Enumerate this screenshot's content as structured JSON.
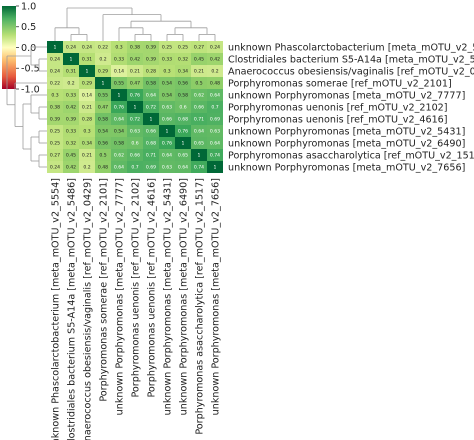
{
  "chart_data": {
    "type": "heatmap",
    "title": "",
    "labels": [
      "unknown Phascolarctobacterium [meta_mOTU_v2_5554]",
      "Clostridiales bacterium S5-A14a [meta_mOTU_v2_5486]",
      "Anaerococcus obesiensis/vaginalis [ref_mOTU_v2_0429]",
      "Porphyromonas somerae [ref_mOTU_v2_2101]",
      "unknown Porphyromonas [meta_mOTU_v2_7777]",
      "Porphyromonas uenonis [ref_mOTU_v2_2102]",
      "Porphyromonas uenonis [ref_mOTU_v2_4616]",
      "unknown Porphyromonas [meta_mOTU_v2_5431]",
      "unknown Porphyromonas [meta_mOTU_v2_6490]",
      "Porphyromonas asaccharolytica [ref_mOTU_v2_1517]",
      "unknown Porphyromonas [meta_mOTU_v2_7656]"
    ],
    "matrix": [
      [
        1,
        0.24,
        0.24,
        0.22,
        0.3,
        0.38,
        0.39,
        0.25,
        0.25,
        0.27,
        0.24
      ],
      [
        0.24,
        1,
        0.31,
        0.2,
        0.33,
        0.42,
        0.39,
        0.33,
        0.32,
        0.45,
        0.42
      ],
      [
        0.24,
        0.31,
        1,
        0.29,
        0.14,
        0.21,
        0.28,
        0.3,
        0.34,
        0.21,
        0.2
      ],
      [
        0.22,
        0.2,
        0.29,
        1,
        0.55,
        0.47,
        0.58,
        0.54,
        0.56,
        0.5,
        0.48
      ],
      [
        0.3,
        0.33,
        0.14,
        0.55,
        1,
        0.76,
        0.64,
        0.54,
        0.58,
        0.62,
        0.64
      ],
      [
        0.38,
        0.42,
        0.21,
        0.47,
        0.76,
        1,
        0.72,
        0.63,
        0.6,
        0.66,
        0.7
      ],
      [
        0.39,
        0.39,
        0.28,
        0.58,
        0.64,
        0.72,
        1,
        0.66,
        0.68,
        0.71,
        0.69
      ],
      [
        0.25,
        0.33,
        0.3,
        0.54,
        0.54,
        0.63,
        0.66,
        1,
        0.76,
        0.64,
        0.63
      ],
      [
        0.25,
        0.32,
        0.34,
        0.56,
        0.58,
        0.6,
        0.68,
        0.76,
        1,
        0.65,
        0.64
      ],
      [
        0.27,
        0.45,
        0.21,
        0.5,
        0.62,
        0.66,
        0.71,
        0.64,
        0.65,
        1,
        0.74
      ],
      [
        0.24,
        0.42,
        0.2,
        0.48,
        0.64,
        0.7,
        0.69,
        0.63,
        0.64,
        0.74,
        1
      ]
    ],
    "colorbar": {
      "min": -1.0,
      "max": 1.0,
      "ticks": [
        1.0,
        0.5,
        0.0,
        -0.5,
        -1.0
      ]
    },
    "colors": {
      "low": "#a50026",
      "mid": "#ffffbf",
      "high": "#006837"
    }
  }
}
